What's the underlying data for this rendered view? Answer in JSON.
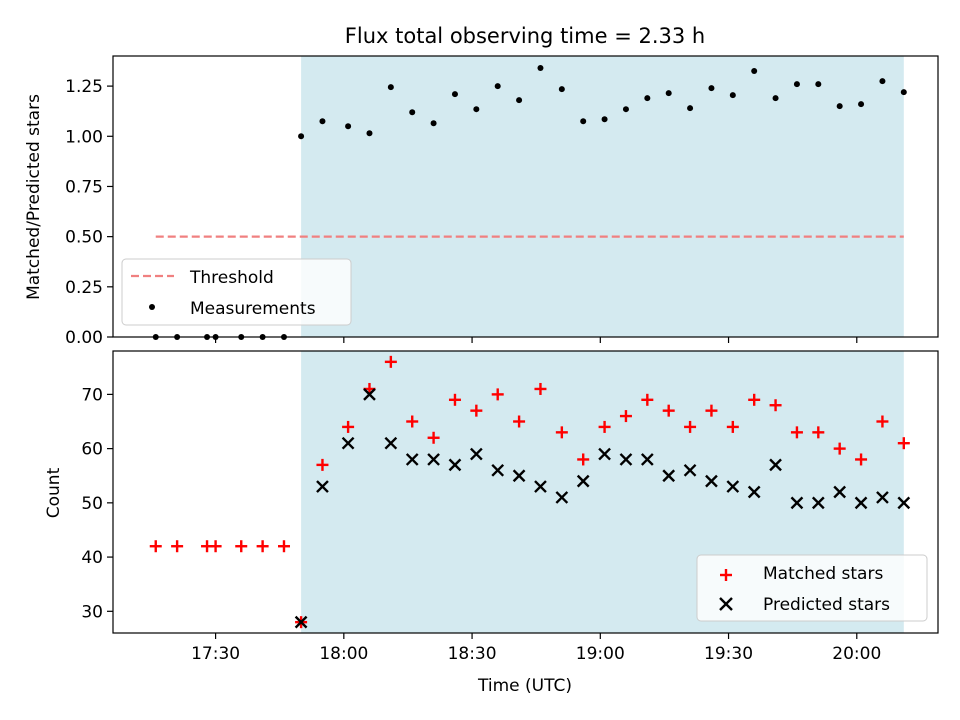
{
  "chart_data": [
    {
      "type": "scatter",
      "title": "Flux total observing time = 2.33 h",
      "xlabel": "",
      "ylabel": "Matched/Predicted stars",
      "ylim": [
        0,
        1.4
      ],
      "yticks": [
        "0.00",
        "0.25",
        "0.50",
        "0.75",
        "1.00",
        "1.25"
      ],
      "shaded_region": {
        "x_start": "17:50",
        "x_end": "20:11",
        "color": "#d4eaf0"
      },
      "legend_position": "lower left",
      "series": [
        {
          "name": "Threshold",
          "style": "dashed-line",
          "color": "#f08080",
          "x": [
            "17:16",
            "20:11"
          ],
          "y": [
            0.5,
            0.5
          ]
        },
        {
          "name": "Measurements",
          "style": "dot",
          "color": "#000000",
          "x": [
            "17:16",
            "17:21",
            "17:28",
            "17:30",
            "17:36",
            "17:41",
            "17:46",
            "17:50",
            "17:55",
            "18:01",
            "18:06",
            "18:11",
            "18:16",
            "18:21",
            "18:26",
            "18:31",
            "18:36",
            "18:41",
            "18:46",
            "18:51",
            "18:56",
            "19:01",
            "19:06",
            "19:11",
            "19:16",
            "19:21",
            "19:26",
            "19:31",
            "19:36",
            "19:41",
            "19:46",
            "19:51",
            "19:56",
            "20:01",
            "20:06",
            "20:11"
          ],
          "y": [
            0,
            0,
            0,
            0,
            0,
            0,
            0,
            1.0,
            1.075,
            1.05,
            1.015,
            1.245,
            1.12,
            1.065,
            1.21,
            1.135,
            1.25,
            1.18,
            1.34,
            1.235,
            1.075,
            1.085,
            1.135,
            1.19,
            1.215,
            1.14,
            1.24,
            1.205,
            1.325,
            1.19,
            1.26,
            1.26,
            1.15,
            1.16,
            1.275,
            1.22
          ]
        }
      ]
    },
    {
      "type": "scatter",
      "title": "",
      "xlabel": "Time (UTC)",
      "ylabel": "Count",
      "ylim": [
        26,
        78
      ],
      "yticks": [
        "30",
        "40",
        "50",
        "60",
        "70"
      ],
      "xticks": [
        "17:30",
        "18:00",
        "18:30",
        "19:00",
        "19:30",
        "20:00"
      ],
      "xlim": [
        "17:06",
        "20:19"
      ],
      "shaded_region": {
        "x_start": "17:50",
        "x_end": "20:11",
        "color": "#d4eaf0"
      },
      "legend_position": "lower right",
      "series": [
        {
          "name": "Matched stars",
          "marker": "+",
          "color": "#ff0000",
          "x": [
            "17:16",
            "17:21",
            "17:28",
            "17:30",
            "17:36",
            "17:41",
            "17:46",
            "17:50",
            "17:55",
            "18:01",
            "18:06",
            "18:11",
            "18:16",
            "18:21",
            "18:26",
            "18:31",
            "18:36",
            "18:41",
            "18:46",
            "18:51",
            "18:56",
            "19:01",
            "19:06",
            "19:11",
            "19:16",
            "19:21",
            "19:26",
            "19:31",
            "19:36",
            "19:41",
            "19:46",
            "19:51",
            "19:56",
            "20:01",
            "20:06",
            "20:11"
          ],
          "y": [
            42,
            42,
            42,
            42,
            42,
            42,
            42,
            28,
            57,
            64,
            71,
            76,
            65,
            62,
            69,
            67,
            70,
            65,
            71,
            63,
            58,
            64,
            66,
            69,
            67,
            64,
            67,
            64,
            69,
            68,
            63,
            63,
            60,
            58,
            65,
            61
          ]
        },
        {
          "name": "Predicted stars",
          "marker": "x",
          "color": "#000000",
          "x": [
            "17:50",
            "17:55",
            "18:01",
            "18:06",
            "18:11",
            "18:16",
            "18:21",
            "18:26",
            "18:31",
            "18:36",
            "18:41",
            "18:46",
            "18:51",
            "18:56",
            "19:01",
            "19:06",
            "19:11",
            "19:16",
            "19:21",
            "19:26",
            "19:31",
            "19:36",
            "19:41",
            "19:46",
            "19:51",
            "19:56",
            "20:01",
            "20:06",
            "20:11"
          ],
          "y": [
            28,
            53,
            61,
            70,
            61,
            58,
            58,
            57,
            59,
            56,
            55,
            53,
            51,
            54,
            59,
            58,
            58,
            55,
            56,
            54,
            53,
            52,
            57,
            50,
            50,
            52,
            50,
            51,
            50
          ]
        }
      ]
    }
  ]
}
